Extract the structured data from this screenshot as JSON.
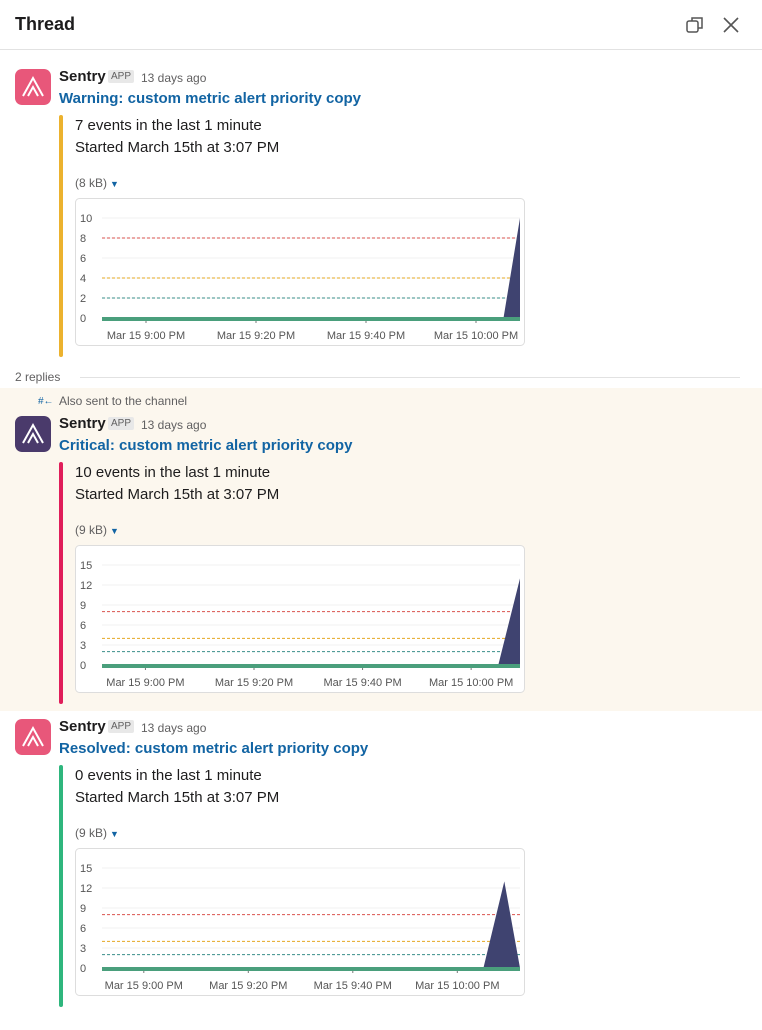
{
  "header": {
    "title": "Thread"
  },
  "replies": "2 replies",
  "also_sent": "Also sent to the channel",
  "messages": [
    {
      "sender": "Sentry",
      "badge": "APP",
      "time": "13 days ago",
      "title": "Warning: custom metric alert priority copy",
      "lines": [
        "7 events in the last 1 minute",
        "Started March 15th at 3:07 PM"
      ],
      "attachment_size": "(8 kB)",
      "accent": "#ecb22e",
      "chart_data": {
        "type": "area",
        "color": "#3f4370",
        "x": [
          -8,
          65,
          68
        ],
        "values": [
          0,
          0,
          10
        ],
        "xlim": [
          -8,
          68
        ],
        "ylim": [
          0,
          10
        ],
        "yticks": [
          0,
          2,
          4,
          6,
          8,
          10
        ],
        "xticks": [
          {
            "value": 0,
            "label": "Mar 15 9:00 PM"
          },
          {
            "value": 20,
            "label": "Mar 15 9:20 PM"
          },
          {
            "value": 40,
            "label": "Mar 15 9:40 PM"
          },
          {
            "value": 60,
            "label": "Mar 15 10:00 PM"
          }
        ],
        "thresholds": [
          {
            "value": 8,
            "color": "#d9534f"
          },
          {
            "value": 4,
            "color": "#e5a823"
          },
          {
            "value": 2,
            "color": "#3a8f8a"
          }
        ]
      }
    },
    {
      "sender": "Sentry",
      "badge": "APP",
      "time": "13 days ago",
      "title": "Critical: custom metric alert priority copy",
      "lines": [
        "10 events in the last 1 minute",
        "Started March 15th at 3:07 PM"
      ],
      "attachment_size": "(9 kB)",
      "accent": "#e01e5a",
      "chart_data": {
        "type": "area",
        "color": "#3f4370",
        "x": [
          -8,
          65,
          69
        ],
        "values": [
          0,
          0,
          13
        ],
        "xlim": [
          -8,
          69
        ],
        "ylim": [
          0,
          15
        ],
        "yticks": [
          0,
          3,
          6,
          9,
          12,
          15
        ],
        "xticks": [
          {
            "value": 0,
            "label": "Mar 15 9:00 PM"
          },
          {
            "value": 20,
            "label": "Mar 15 9:20 PM"
          },
          {
            "value": 40,
            "label": "Mar 15 9:40 PM"
          },
          {
            "value": 60,
            "label": "Mar 15 10:00 PM"
          }
        ],
        "thresholds": [
          {
            "value": 8,
            "color": "#d9534f"
          },
          {
            "value": 4,
            "color": "#e5a823"
          },
          {
            "value": 2,
            "color": "#3a8f8a"
          }
        ]
      }
    },
    {
      "sender": "Sentry",
      "badge": "APP",
      "time": "13 days ago",
      "title": "Resolved: custom metric alert priority copy",
      "lines": [
        "0 events in the last 1 minute",
        "Started March 15th at 3:07 PM"
      ],
      "attachment_size": "(9 kB)",
      "accent": "#2eb67d",
      "chart_data": {
        "type": "area",
        "color": "#3f4370",
        "x": [
          -8,
          65,
          69,
          72
        ],
        "values": [
          0,
          0,
          13,
          0
        ],
        "xlim": [
          -8,
          72
        ],
        "ylim": [
          0,
          15
        ],
        "yticks": [
          0,
          3,
          6,
          9,
          12,
          15
        ],
        "xticks": [
          {
            "value": 0,
            "label": "Mar 15 9:00 PM"
          },
          {
            "value": 20,
            "label": "Mar 15 9:20 PM"
          },
          {
            "value": 40,
            "label": "Mar 15 9:40 PM"
          },
          {
            "value": 60,
            "label": "Mar 15 10:00 PM"
          }
        ],
        "thresholds": [
          {
            "value": 8,
            "color": "#d9534f"
          },
          {
            "value": 4,
            "color": "#e5a823"
          },
          {
            "value": 2,
            "color": "#3a8f8a"
          }
        ]
      }
    }
  ]
}
